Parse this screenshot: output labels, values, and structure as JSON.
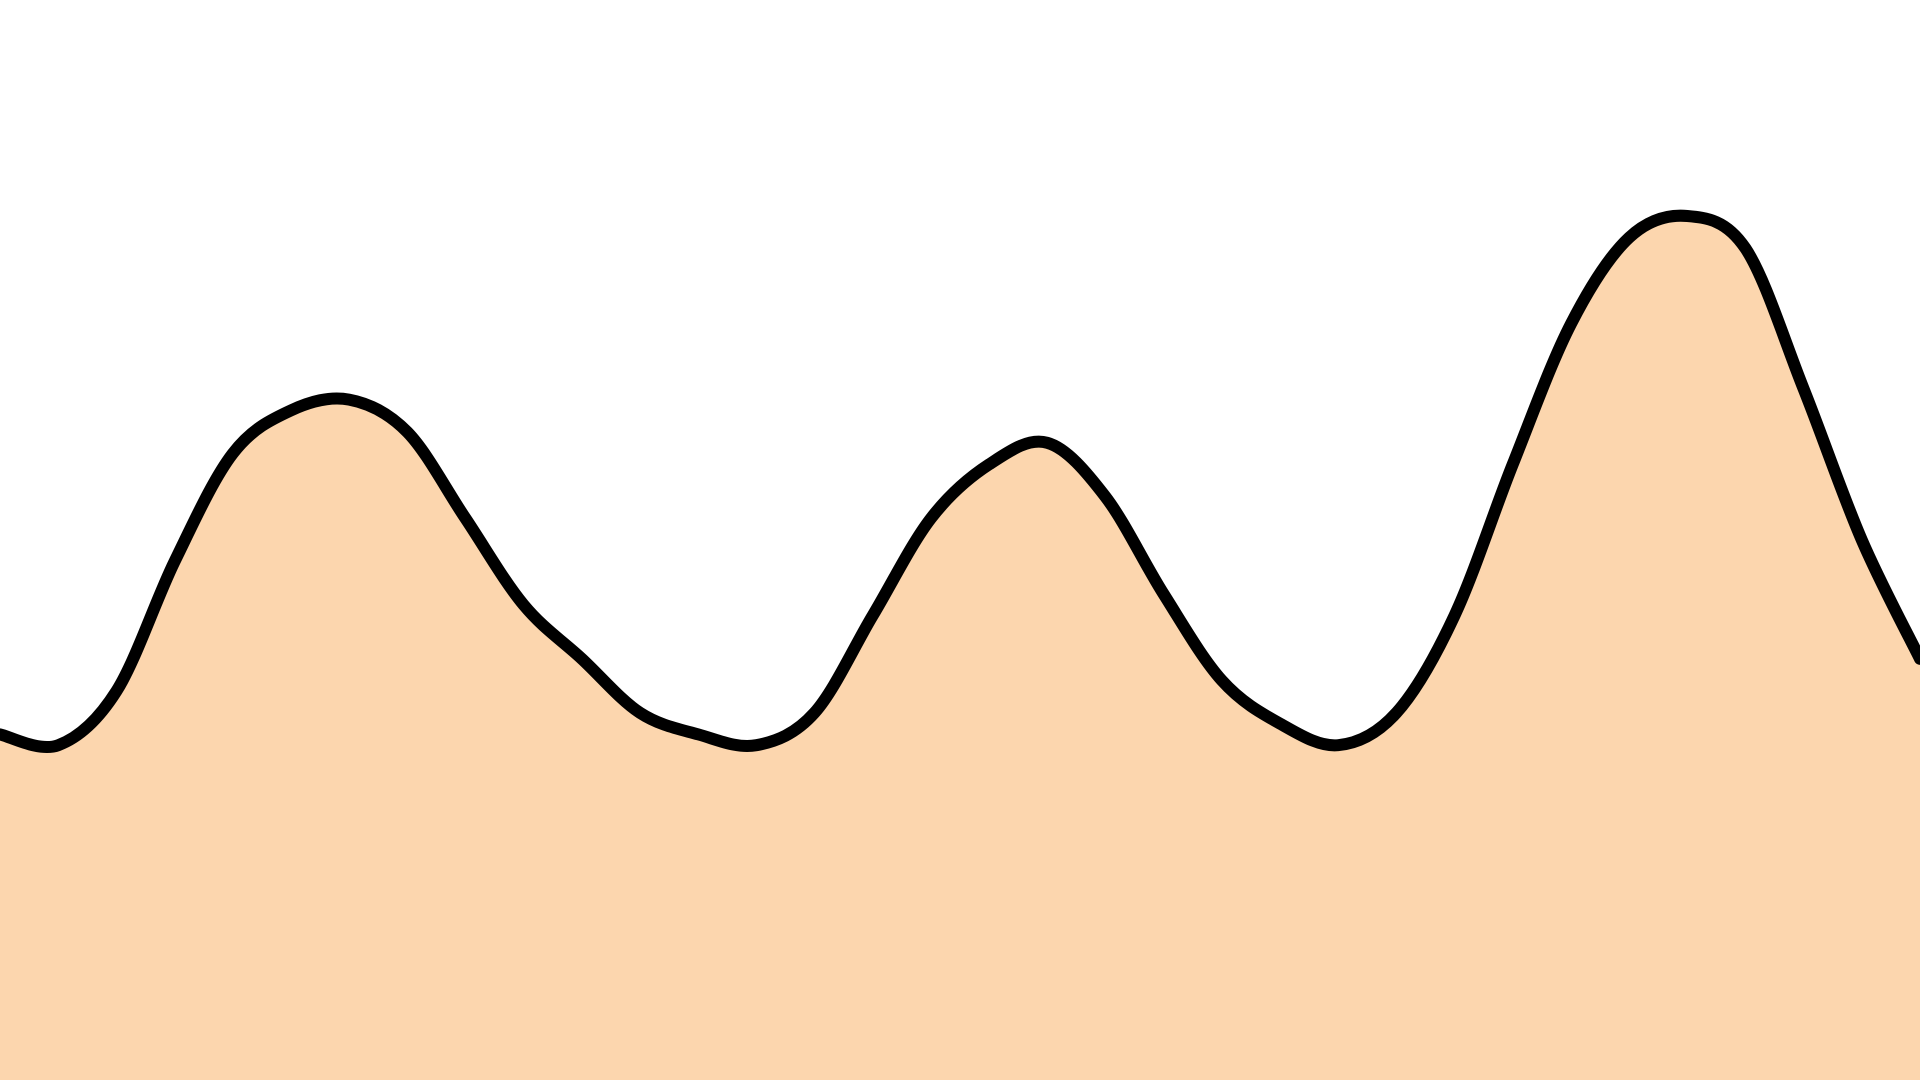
{
  "scene": {
    "kind": "terrain-area",
    "colors": {
      "sky": "#ffffff",
      "fill": "#fcd6ae",
      "outline": "#000000"
    },
    "profile": {
      "description_free": true,
      "y_range": [
        0,
        1
      ],
      "elevations": [
        0.32,
        0.31,
        0.36,
        0.48,
        0.58,
        0.62,
        0.63,
        0.6,
        0.52,
        0.44,
        0.39,
        0.34,
        0.32,
        0.31,
        0.34,
        0.43,
        0.52,
        0.57,
        0.59,
        0.54,
        0.45,
        0.37,
        0.33,
        0.31,
        0.34,
        0.43,
        0.57,
        0.7,
        0.78,
        0.8,
        0.77,
        0.64,
        0.5,
        0.39
      ]
    }
  }
}
